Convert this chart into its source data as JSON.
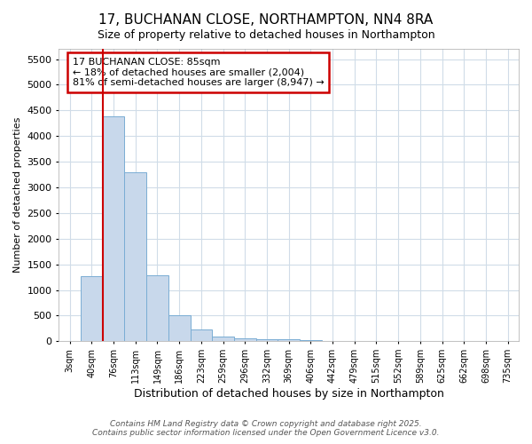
{
  "title_line1": "17, BUCHANAN CLOSE, NORTHAMPTON, NN4 8RA",
  "title_line2": "Size of property relative to detached houses in Northampton",
  "xlabel": "Distribution of detached houses by size in Northampton",
  "ylabel": "Number of detached properties",
  "bar_color": "#c8d8eb",
  "bar_edge_color": "#7aadd4",
  "background_color": "#ffffff",
  "fig_background_color": "#ffffff",
  "grid_color": "#d0dce8",
  "annotation_box_color": "#cc0000",
  "vline_color": "#cc0000",
  "annotation_title": "17 BUCHANAN CLOSE: 85sqm",
  "annotation_line1": "← 18% of detached houses are smaller (2,004)",
  "annotation_line2": "81% of semi-detached houses are larger (8,947) →",
  "footnote1": "Contains HM Land Registry data © Crown copyright and database right 2025.",
  "footnote2": "Contains public sector information licensed under the Open Government Licence v3.0.",
  "categories": [
    "3sqm",
    "40sqm",
    "76sqm",
    "113sqm",
    "149sqm",
    "186sqm",
    "223sqm",
    "259sqm",
    "296sqm",
    "332sqm",
    "369sqm",
    "406sqm",
    "442sqm",
    "479sqm",
    "515sqm",
    "552sqm",
    "589sqm",
    "625sqm",
    "662sqm",
    "698sqm",
    "735sqm"
  ],
  "values": [
    0,
    1270,
    4380,
    3300,
    1280,
    500,
    230,
    90,
    50,
    35,
    40,
    30,
    0,
    0,
    0,
    0,
    0,
    0,
    0,
    0,
    0
  ],
  "ylim": [
    0,
    5700
  ],
  "yticks": [
    0,
    500,
    1000,
    1500,
    2000,
    2500,
    3000,
    3500,
    4000,
    4500,
    5000,
    5500
  ],
  "vline_index": 2,
  "property_bin_index": 2
}
